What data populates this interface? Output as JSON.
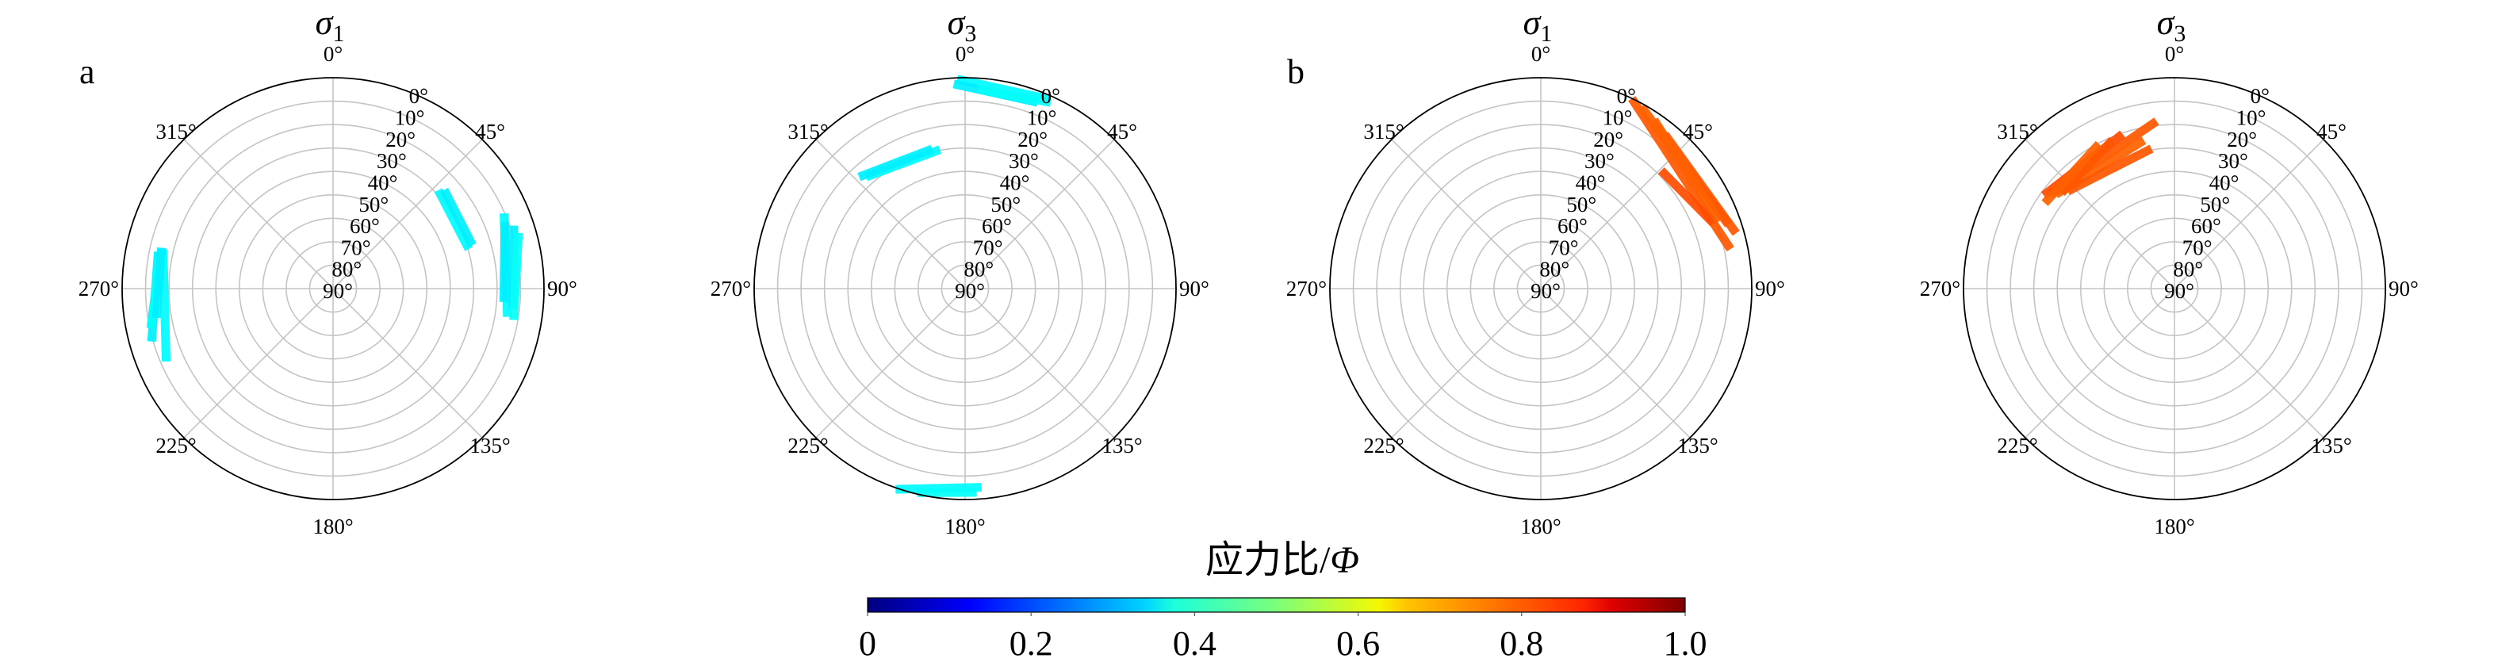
{
  "chart_data": {
    "type": "polar-stereonet",
    "panels": [
      {
        "panel_label": "a",
        "title": "σ",
        "title_subscript": "1",
        "group": "a",
        "segments": [
          {
            "from": [
              48.6,
              29
            ],
            "to": [
              72.0,
              30
            ],
            "phi": 0.37
          },
          {
            "from": [
              50.0,
              27
            ],
            "to": [
              71.0,
              28
            ],
            "phi": 0.36
          },
          {
            "from": [
              67.5,
              11
            ],
            "to": [
              97.8,
              15
            ],
            "phi": 0.37
          },
          {
            "from": [
              72.0,
              9
            ],
            "to": [
              95.0,
              13
            ],
            "phi": 0.36
          },
          {
            "from": [
              74.5,
              8
            ],
            "to": [
              98.5,
              12
            ],
            "phi": 0.38
          },
          {
            "from": [
              70.0,
              12
            ],
            "to": [
              93.0,
              17
            ],
            "phi": 0.36
          },
          {
            "from": [
              281.6,
              16
            ],
            "to": [
              247.7,
              13
            ],
            "phi": 0.37
          },
          {
            "from": [
              280.5,
              14
            ],
            "to": [
              255.0,
              10
            ],
            "phi": 0.36
          },
          {
            "from": [
              278.0,
              15
            ],
            "to": [
              259.0,
              11
            ],
            "phi": 0.38
          },
          {
            "from": [
              282.0,
              15
            ],
            "to": [
              262.0,
              14
            ],
            "phi": 0.36
          }
        ]
      },
      {
        "panel_label": "",
        "title": "σ",
        "title_subscript": "3",
        "group": "a",
        "segments": [
          {
            "from": [
              359.0,
              1
            ],
            "to": [
              22.6,
              2
            ],
            "phi": 0.37
          },
          {
            "from": [
              358.0,
              3
            ],
            "to": [
              20.0,
              5
            ],
            "phi": 0.36
          },
          {
            "from": [
              5.0,
              5
            ],
            "to": [
              23.5,
              3
            ],
            "phi": 0.38
          },
          {
            "from": [
              320.0,
              27
            ],
            "to": [
              348.0,
              30
            ],
            "phi": 0.37
          },
          {
            "from": [
              318.0,
              25
            ],
            "to": [
              345.0,
              29
            ],
            "phi": 0.36
          },
          {
            "from": [
              198.0,
              0
            ],
            "to": [
              176.5,
              5
            ],
            "phi": 0.37
          },
          {
            "from": [
              192.0,
              1
            ],
            "to": [
              178.0,
              3
            ],
            "phi": 0.38
          }
        ]
      },
      {
        "panel_label": "b",
        "title": "σ",
        "title_subscript": "1",
        "group": "b",
        "segments": [
          {
            "from": [
              26.6,
              1
            ],
            "to": [
              77.0,
              8
            ],
            "phi": 0.79
          },
          {
            "from": [
              30.0,
              2
            ],
            "to": [
              70.0,
              6
            ],
            "phi": 0.78
          },
          {
            "from": [
              47.0,
              18
            ],
            "to": [
              68.0,
              12
            ],
            "phi": 0.8
          },
          {
            "from": [
              40.0,
              6
            ],
            "to": [
              73.0,
              4
            ],
            "phi": 0.79
          },
          {
            "from": [
              35.0,
              4
            ],
            "to": [
              68.0,
              9
            ],
            "phi": 0.78
          }
        ]
      },
      {
        "panel_label": "",
        "title": "σ",
        "title_subscript": "3",
        "group": "b",
        "segments": [
          {
            "from": [
              309.0,
              24
            ],
            "to": [
              352.6,
              19
            ],
            "phi": 0.79
          },
          {
            "from": [
              310.0,
              26
            ],
            "to": [
              346.8,
              26
            ],
            "phi": 0.78
          },
          {
            "from": [
              307.0,
              22
            ],
            "to": [
              340.0,
              21
            ],
            "phi": 0.8
          },
          {
            "from": [
              312.0,
              27
            ],
            "to": [
              336.0,
              22
            ],
            "phi": 0.79
          },
          {
            "from": [
              305.0,
              24
            ],
            "to": [
              331.0,
              21
            ],
            "phi": 0.78
          },
          {
            "from": [
              314.0,
              29
            ],
            "to": [
              349.0,
              30
            ],
            "phi": 0.79
          }
        ]
      }
    ],
    "azimuth_ticks": [
      "0°",
      "45°",
      "90°",
      "135°",
      "180°",
      "225°",
      "270°",
      "315°"
    ],
    "azimuth_tick_values": [
      0,
      45,
      90,
      135,
      180,
      225,
      270,
      315
    ],
    "dip_ticks": [
      "0°",
      "10°",
      "20°",
      "30°",
      "40°",
      "50°",
      "60°",
      "70°",
      "80°",
      "90°"
    ],
    "dip_tick_values": [
      0,
      10,
      20,
      30,
      40,
      50,
      60,
      70,
      80,
      90
    ],
    "dip_range": [
      0,
      90
    ],
    "colorbar": {
      "label": "应力比/",
      "label_symbol": "Φ",
      "colormap": "jet",
      "range": [
        0,
        1.0
      ],
      "ticks": [
        0,
        0.2,
        0.4,
        0.6,
        0.8,
        1.0
      ],
      "tick_labels": [
        "0",
        "0.2",
        "0.4",
        "0.6",
        "0.8",
        "1.0"
      ],
      "orientation": "horizontal",
      "placement": "bottom-center"
    },
    "grid": true
  }
}
